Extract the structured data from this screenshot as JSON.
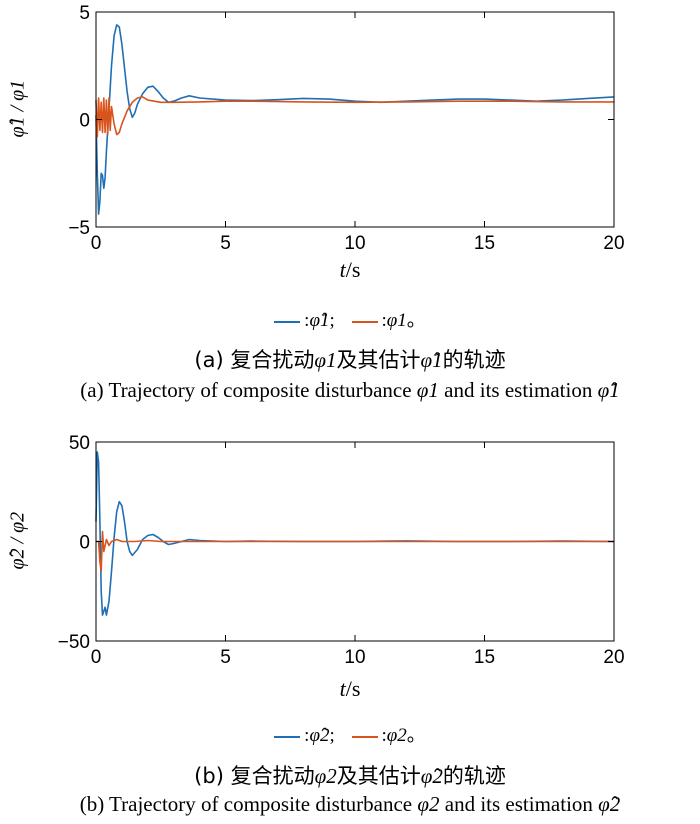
{
  "chart_data": [
    {
      "type": "line",
      "panel": "a",
      "xlabel_var": "t",
      "xlabel_unit": "/s",
      "ylabel": "φ̂1 / φ1",
      "xlim": [
        0,
        20
      ],
      "ylim": [
        -5,
        5
      ],
      "xticks": [
        "0",
        "5",
        "10",
        "15",
        "20"
      ],
      "yticks": [
        "5",
        "0",
        "−5"
      ],
      "ytick_values": [
        5,
        0,
        -5
      ],
      "xtick_values": [
        0,
        5,
        10,
        15,
        20
      ],
      "series": [
        {
          "name": "φ̂1",
          "color": "#1f6fb4",
          "x": [
            0,
            0.05,
            0.1,
            0.15,
            0.2,
            0.25,
            0.3,
            0.35,
            0.4,
            0.5,
            0.6,
            0.7,
            0.8,
            0.9,
            1.0,
            1.1,
            1.2,
            1.3,
            1.4,
            1.5,
            1.6,
            1.8,
            2.0,
            2.2,
            2.4,
            2.6,
            2.8,
            3.0,
            3.3,
            3.6,
            4,
            5,
            6,
            7,
            8,
            9,
            10,
            11,
            12,
            13,
            14,
            15,
            16,
            17,
            18,
            19,
            20
          ],
          "y": [
            0.2,
            -2.5,
            -4.4,
            -3.8,
            -2.5,
            -2.6,
            -3.2,
            -2.7,
            -1.5,
            0.5,
            2.5,
            3.9,
            4.4,
            4.3,
            3.5,
            2.4,
            1.3,
            0.5,
            0.1,
            0.3,
            0.7,
            1.2,
            1.5,
            1.55,
            1.3,
            1.0,
            0.8,
            0.85,
            1.0,
            1.1,
            1.0,
            0.9,
            0.88,
            0.92,
            0.98,
            0.95,
            0.85,
            0.8,
            0.85,
            0.9,
            0.95,
            0.95,
            0.9,
            0.85,
            0.9,
            0.98,
            1.05
          ]
        },
        {
          "name": "φ1",
          "color": "#d9541c",
          "x": [
            0,
            0.05,
            0.1,
            0.15,
            0.2,
            0.25,
            0.3,
            0.35,
            0.4,
            0.45,
            0.5,
            0.55,
            0.6,
            0.7,
            0.8,
            0.9,
            1.0,
            1.2,
            1.4,
            1.6,
            1.8,
            2.0,
            2.5,
            3,
            4,
            5,
            6,
            8,
            10,
            12,
            14,
            16,
            18,
            20
          ],
          "y": [
            0.9,
            -0.8,
            1.0,
            -0.5,
            0.8,
            -0.6,
            1.0,
            -0.6,
            0.9,
            -0.7,
            1.0,
            -0.5,
            0.6,
            -0.2,
            -0.7,
            -0.6,
            -0.2,
            0.4,
            0.8,
            1.0,
            1.05,
            0.9,
            0.8,
            0.8,
            0.82,
            0.85,
            0.85,
            0.82,
            0.8,
            0.82,
            0.85,
            0.85,
            0.82,
            0.82
          ]
        }
      ]
    },
    {
      "type": "line",
      "panel": "b",
      "xlabel_var": "t",
      "xlabel_unit": "/s",
      "ylabel": "φ̂2 / φ2",
      "xlim": [
        0,
        20
      ],
      "ylim": [
        -50,
        50
      ],
      "xticks": [
        "0",
        "5",
        "10",
        "15",
        "20"
      ],
      "yticks": [
        "50",
        "0",
        "−50"
      ],
      "ytick_values": [
        50,
        0,
        -50
      ],
      "xtick_values": [
        0,
        5,
        10,
        15,
        20
      ],
      "series": [
        {
          "name": "φ̂2",
          "color": "#1f6fb4",
          "x": [
            0,
            0.05,
            0.1,
            0.15,
            0.2,
            0.25,
            0.3,
            0.35,
            0.4,
            0.5,
            0.6,
            0.7,
            0.8,
            0.9,
            1.0,
            1.1,
            1.2,
            1.3,
            1.4,
            1.6,
            1.8,
            2.0,
            2.2,
            2.4,
            2.6,
            2.8,
            3.0,
            3.3,
            3.6,
            4,
            5,
            6,
            8,
            10,
            12,
            14,
            16,
            18,
            20
          ],
          "y": [
            10,
            45,
            40,
            10,
            -25,
            -37,
            -35,
            -33,
            -37,
            -30,
            -15,
            2,
            15,
            20,
            18,
            10,
            0,
            -5,
            -7,
            -4,
            1,
            3,
            3.5,
            2,
            0,
            -1.5,
            -1,
            0,
            1,
            0.5,
            0,
            0.2,
            0,
            0,
            0.3,
            0,
            0,
            0.2,
            0
          ]
        },
        {
          "name": "φ2",
          "color": "#d9541c",
          "x": [
            0,
            0.1,
            0.15,
            0.2,
            0.25,
            0.3,
            0.35,
            0.4,
            0.5,
            0.6,
            0.8,
            1.0,
            1.5,
            2,
            2.5,
            3,
            4,
            6,
            8,
            10,
            12,
            14,
            16,
            18,
            20
          ],
          "y": [
            0,
            0,
            -10,
            -15,
            5,
            -5,
            -2,
            1,
            -2,
            0,
            1,
            0,
            0,
            0.5,
            0,
            0,
            0,
            0,
            0,
            0,
            0,
            0,
            0,
            0,
            0
          ]
        }
      ]
    }
  ],
  "legend": {
    "a": {
      "item1": "φ̂1",
      "item1_sep": ";",
      "item2": "φ1",
      "item2_end": "。"
    },
    "b": {
      "item1": "φ̂2",
      "item1_sep": ";",
      "item2": "φ2",
      "item2_end": "。"
    }
  },
  "captions": {
    "a_cn_pre": "(a) 复合扰动",
    "a_cn_mid": "及其估计",
    "a_cn_post": "的轨迹",
    "a_en_pre": "(a) Trajectory of composite disturbance ",
    "a_en_mid": " and its estimation ",
    "b_cn_pre": "(b) 复合扰动",
    "b_cn_mid": "及其估计",
    "b_cn_post": "的轨迹",
    "b_en_pre": "(b) Trajectory of composite disturbance ",
    "b_en_mid": " and its estimation "
  },
  "symbols": {
    "phi_hat_1": "φ̂1",
    "phi_1": "φ1",
    "phi_hat_2": "φ̂2",
    "phi_2": "φ2"
  }
}
